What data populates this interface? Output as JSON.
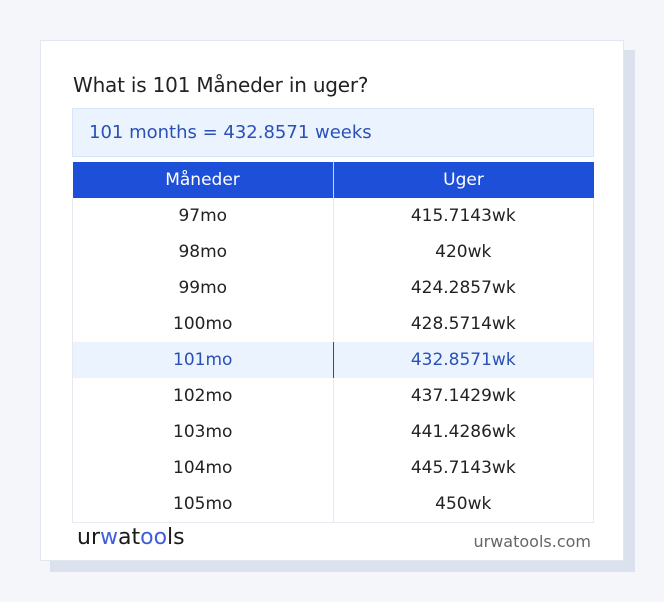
{
  "title": "What is 101 Måneder in uger?",
  "result_text": "101 months = 432.8571 weeks",
  "table": {
    "headers": [
      "Måneder",
      "Uger"
    ],
    "rows": [
      [
        "97mo",
        "415.7143wk"
      ],
      [
        "98mo",
        "420wk"
      ],
      [
        "99mo",
        "424.2857wk"
      ],
      [
        "100mo",
        "428.5714wk"
      ],
      [
        "101mo",
        "432.8571wk"
      ],
      [
        "102mo",
        "437.1429wk"
      ],
      [
        "103mo",
        "441.4286wk"
      ],
      [
        "104mo",
        "445.7143wk"
      ],
      [
        "105mo",
        "450wk"
      ]
    ],
    "highlighted_row": 4
  },
  "footer": {
    "logo": {
      "part1": "ur",
      "part2": "w",
      "part3": "at",
      "part4": "oo",
      "part5": "ls"
    },
    "site": "urwatools.com"
  },
  "colors": {
    "accent": "#1e4fd8",
    "highlight_bg": "#ebf4fe",
    "highlight_text": "#2a50b8"
  }
}
